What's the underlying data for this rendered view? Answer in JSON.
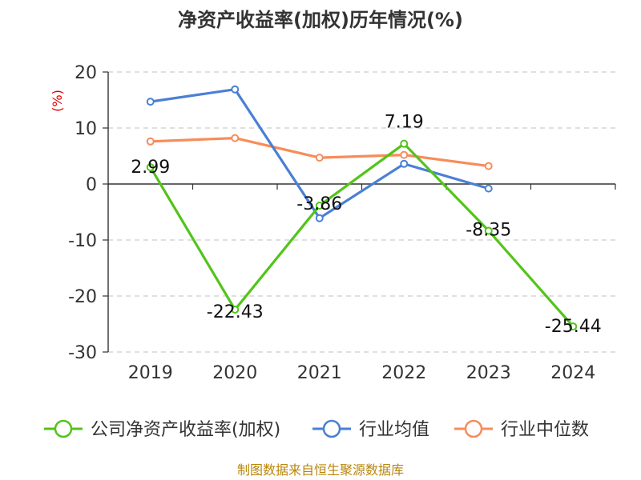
{
  "chart_data": {
    "type": "line",
    "title": "净资产收益率(加权)历年情况(%)",
    "ylabel": "(%)",
    "xlabel": "",
    "categories": [
      "2019",
      "2020",
      "2021",
      "2022",
      "2023",
      "2024"
    ],
    "ylim": [
      -30,
      20
    ],
    "yticks": [
      20,
      10,
      0,
      -10,
      -20,
      -30
    ],
    "grid": true,
    "legend_position": "bottom",
    "series": [
      {
        "name": "公司净资产收益率(加权)",
        "color": "#52c41a",
        "values": [
          2.99,
          -22.43,
          -3.86,
          7.19,
          -8.35,
          -25.44
        ],
        "labels": [
          "2.99",
          "-22.43",
          "-3.86",
          "7.19",
          "-8.35",
          "-25.44"
        ]
      },
      {
        "name": "行业均值",
        "color": "#4a7fd6",
        "values": [
          14.7,
          16.9,
          -6.1,
          3.6,
          -0.8,
          null
        ]
      },
      {
        "name": "行业中位数",
        "color": "#f78c5a",
        "values": [
          7.6,
          8.2,
          4.7,
          5.2,
          3.2,
          null
        ]
      }
    ]
  },
  "source": "制图数据来自恒生聚源数据库"
}
